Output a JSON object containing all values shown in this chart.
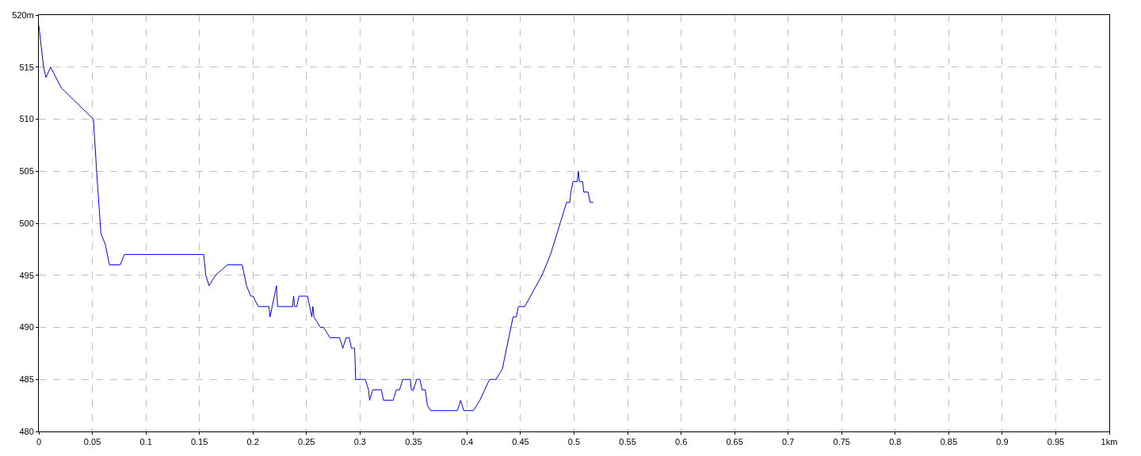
{
  "chart_data": {
    "type": "line",
    "x": [
      0,
      0.0044,
      0.0067,
      0.011,
      0.021,
      0.051,
      0.054,
      0.058,
      0.062,
      0.066,
      0.076,
      0.08,
      0.154,
      0.156,
      0.159,
      0.165,
      0.176,
      0.19,
      0.194,
      0.198,
      0.2,
      0.205,
      0.215,
      0.216,
      0.218,
      0.22,
      0.222,
      0.223,
      0.237,
      0.238,
      0.239,
      0.241,
      0.243,
      0.251,
      0.253,
      0.255,
      0.256,
      0.257,
      0.263,
      0.266,
      0.272,
      0.281,
      0.284,
      0.287,
      0.29,
      0.292,
      0.295,
      0.296,
      0.305,
      0.308,
      0.309,
      0.312,
      0.32,
      0.322,
      0.331,
      0.334,
      0.337,
      0.34,
      0.347,
      0.348,
      0.35,
      0.353,
      0.356,
      0.358,
      0.361,
      0.363,
      0.366,
      0.391,
      0.394,
      0.397,
      0.406,
      0.412,
      0.421,
      0.427,
      0.433,
      0.439,
      0.443,
      0.446,
      0.448,
      0.454,
      0.47,
      0.478,
      0.493,
      0.496,
      0.497,
      0.499,
      0.503,
      0.504,
      0.505,
      0.508,
      0.509,
      0.513,
      0.515,
      0.518
    ],
    "series": [
      {
        "color": "#0000ff",
        "values": [
          519,
          515,
          514,
          515,
          513,
          510,
          505,
          499,
          498,
          496,
          496,
          497,
          497,
          495,
          494,
          495,
          496,
          496,
          494,
          493,
          493,
          492,
          492,
          491,
          492,
          493,
          494,
          492,
          492,
          493,
          492,
          492,
          493,
          493,
          492,
          491,
          492,
          491,
          490,
          490,
          489,
          489,
          488,
          489,
          489,
          488,
          488,
          485,
          485,
          484,
          483,
          484,
          484,
          483,
          483,
          484,
          484,
          485,
          485,
          484,
          484,
          485,
          485,
          484,
          484,
          482.5,
          482,
          482,
          483,
          482,
          482,
          483,
          485,
          485,
          486,
          489,
          491,
          491,
          492,
          492,
          495,
          497,
          502,
          502,
          503,
          504,
          504,
          505,
          504,
          504,
          503,
          503,
          502,
          502
        ]
      }
    ],
    "xlim": [
      0,
      1
    ],
    "xticks": [
      0,
      0.05,
      0.1,
      0.15,
      0.2,
      0.25,
      0.3,
      0.35,
      0.4,
      0.45,
      0.5,
      0.55,
      0.6,
      0.65,
      0.7,
      0.75,
      0.8,
      0.85,
      0.9,
      0.95,
      {
        "value": 1,
        "label": "1km"
      }
    ],
    "ylim": [
      480,
      520
    ],
    "yticks": [
      480,
      485,
      490,
      495,
      500,
      505,
      510,
      515,
      {
        "value": 520,
        "label": "520m"
      }
    ],
    "grid": true,
    "marker": "none",
    "line_style": "solid"
  }
}
